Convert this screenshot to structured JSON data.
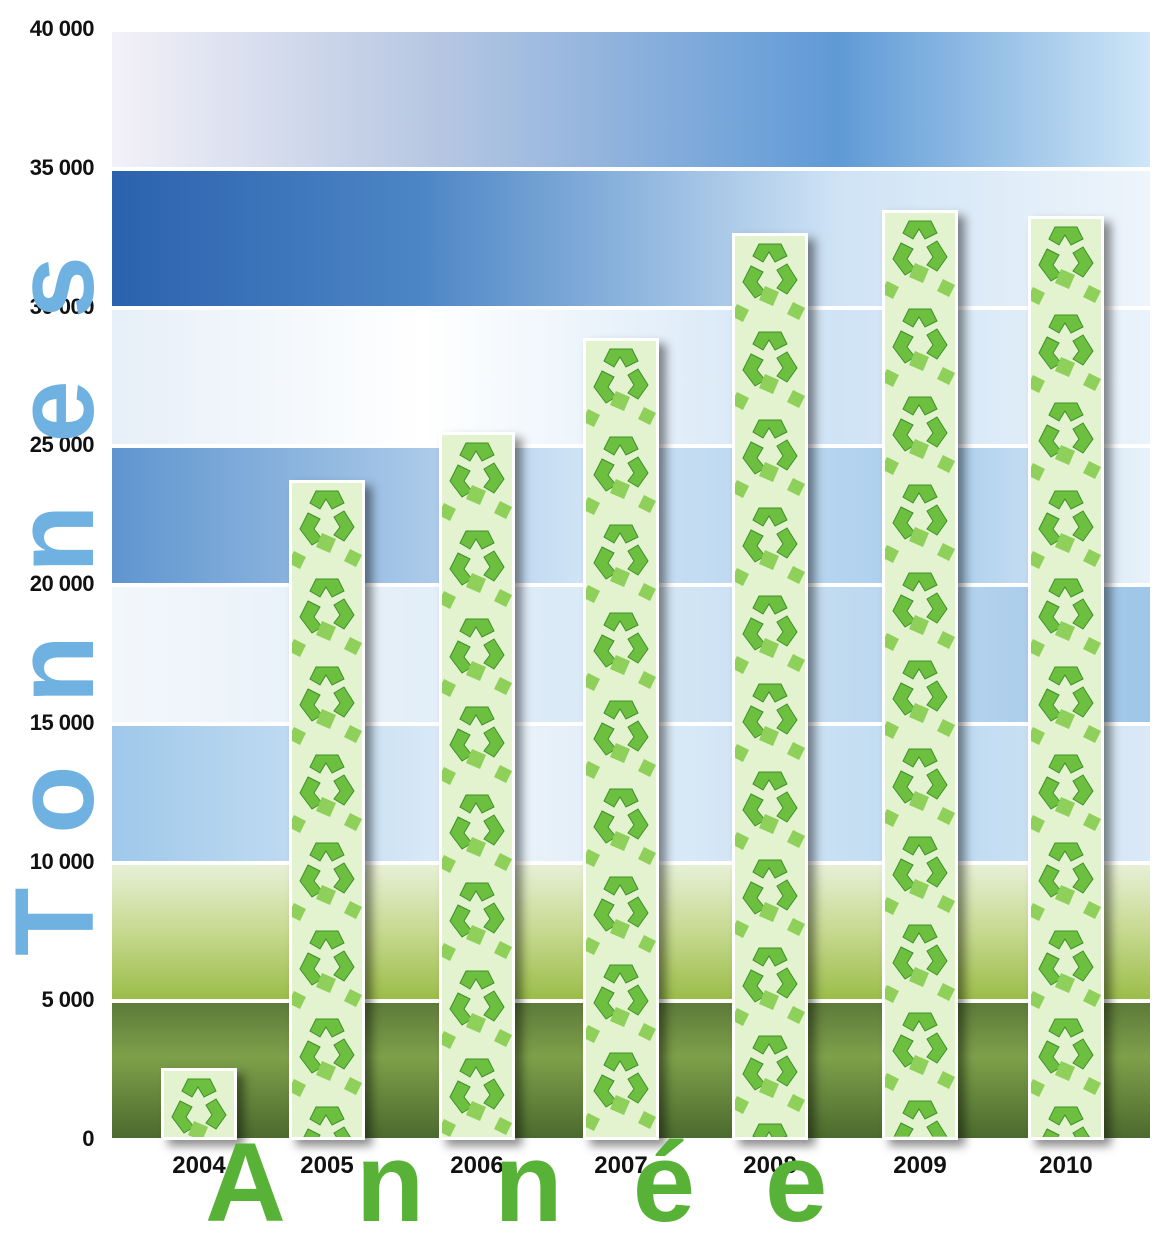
{
  "chart_data": {
    "type": "bar",
    "title": "",
    "xlabel": "Année",
    "ylabel": "Tonnes",
    "categories": [
      "2004",
      "2005",
      "2006",
      "2007",
      "2008",
      "2009",
      "2010"
    ],
    "values": [
      2600,
      23800,
      25500,
      28900,
      32700,
      33500,
      33300
    ],
    "ylim": [
      0,
      40000
    ],
    "yticks": [
      0,
      5000,
      10000,
      15000,
      20000,
      25000,
      30000,
      35000,
      40000
    ],
    "ytick_labels": [
      "0",
      "5 000",
      "10 000",
      "15 000",
      "20 000",
      "25 000",
      "30 000",
      "35 000",
      "40 000"
    ],
    "grid": false,
    "legend": "none",
    "bar_fill_icon": "recycle-icon",
    "colors": {
      "bar_fill": "#e3f2cf",
      "bar_icon": "#6cbf3f",
      "ylabel": "#6fb1e1",
      "xlabel": "#58b237",
      "sky_dark": "#2b62ad",
      "sky_light": "#cfe3f5",
      "grass": "#9bbd4a"
    }
  }
}
